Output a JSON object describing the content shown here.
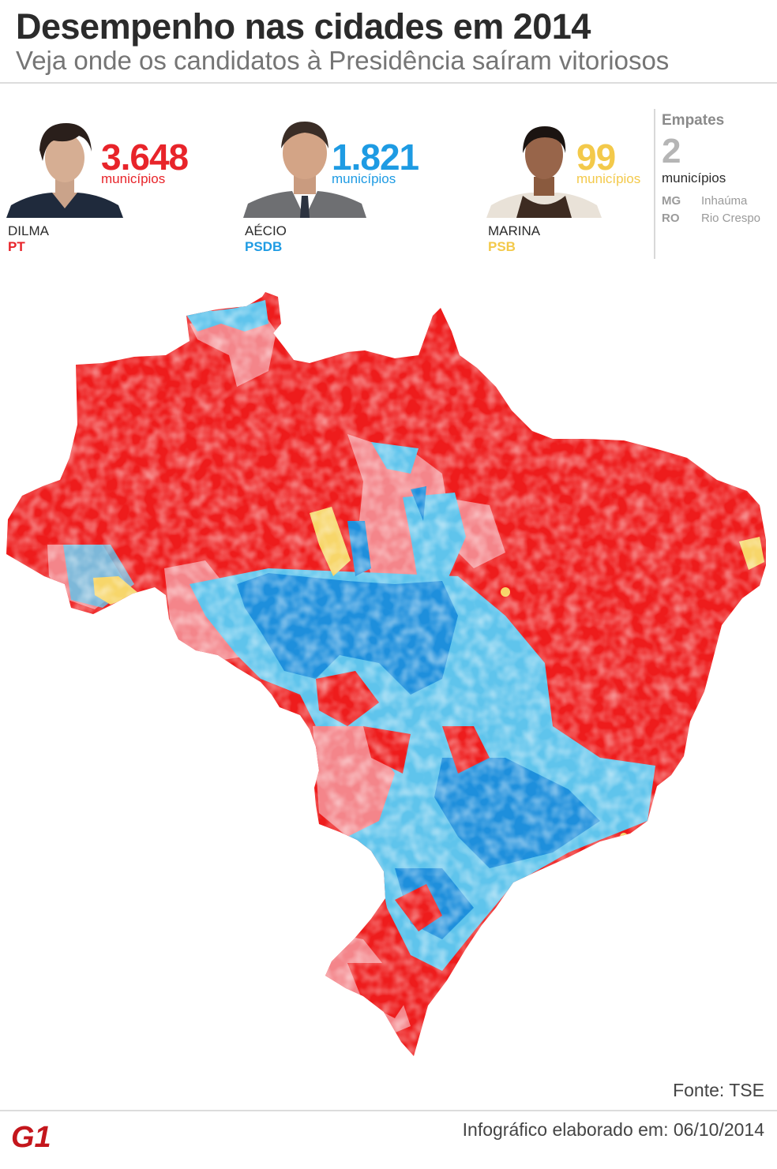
{
  "header": {
    "title": "Desempenho nas cidades em 2014",
    "subtitle": "Veja onde os candidatos à Presidência saíram vitoriosos"
  },
  "candidates": [
    {
      "name": "DILMA",
      "party": "PT",
      "count": "3.648",
      "unit": "municípios",
      "color": "#e8242a"
    },
    {
      "name": "AÉCIO",
      "party": "PSDB",
      "count": "1.821",
      "unit": "municípios",
      "color": "#1e9be3"
    },
    {
      "name": "MARINA",
      "party": "PSB",
      "count": "99",
      "unit": "municípios",
      "color": "#f3c94a"
    }
  ],
  "ties": {
    "title": "Empates",
    "count": "2",
    "unit": "municípios",
    "rows": [
      {
        "state": "MG",
        "city": "Inhaúma"
      },
      {
        "state": "RO",
        "city": "Rio Crespo"
      }
    ]
  },
  "map": {
    "colors": {
      "dilma_strong": "#ee1c1c",
      "dilma_light": "#f4858a",
      "aecio_strong": "#1e8fdc",
      "aecio_light": "#5fc4ec",
      "marina": "#f7d66a"
    }
  },
  "footer": {
    "source": "Fonte: TSE",
    "credit": "Infográfico elaborado em: 06/10/2014",
    "logo": "G1"
  }
}
